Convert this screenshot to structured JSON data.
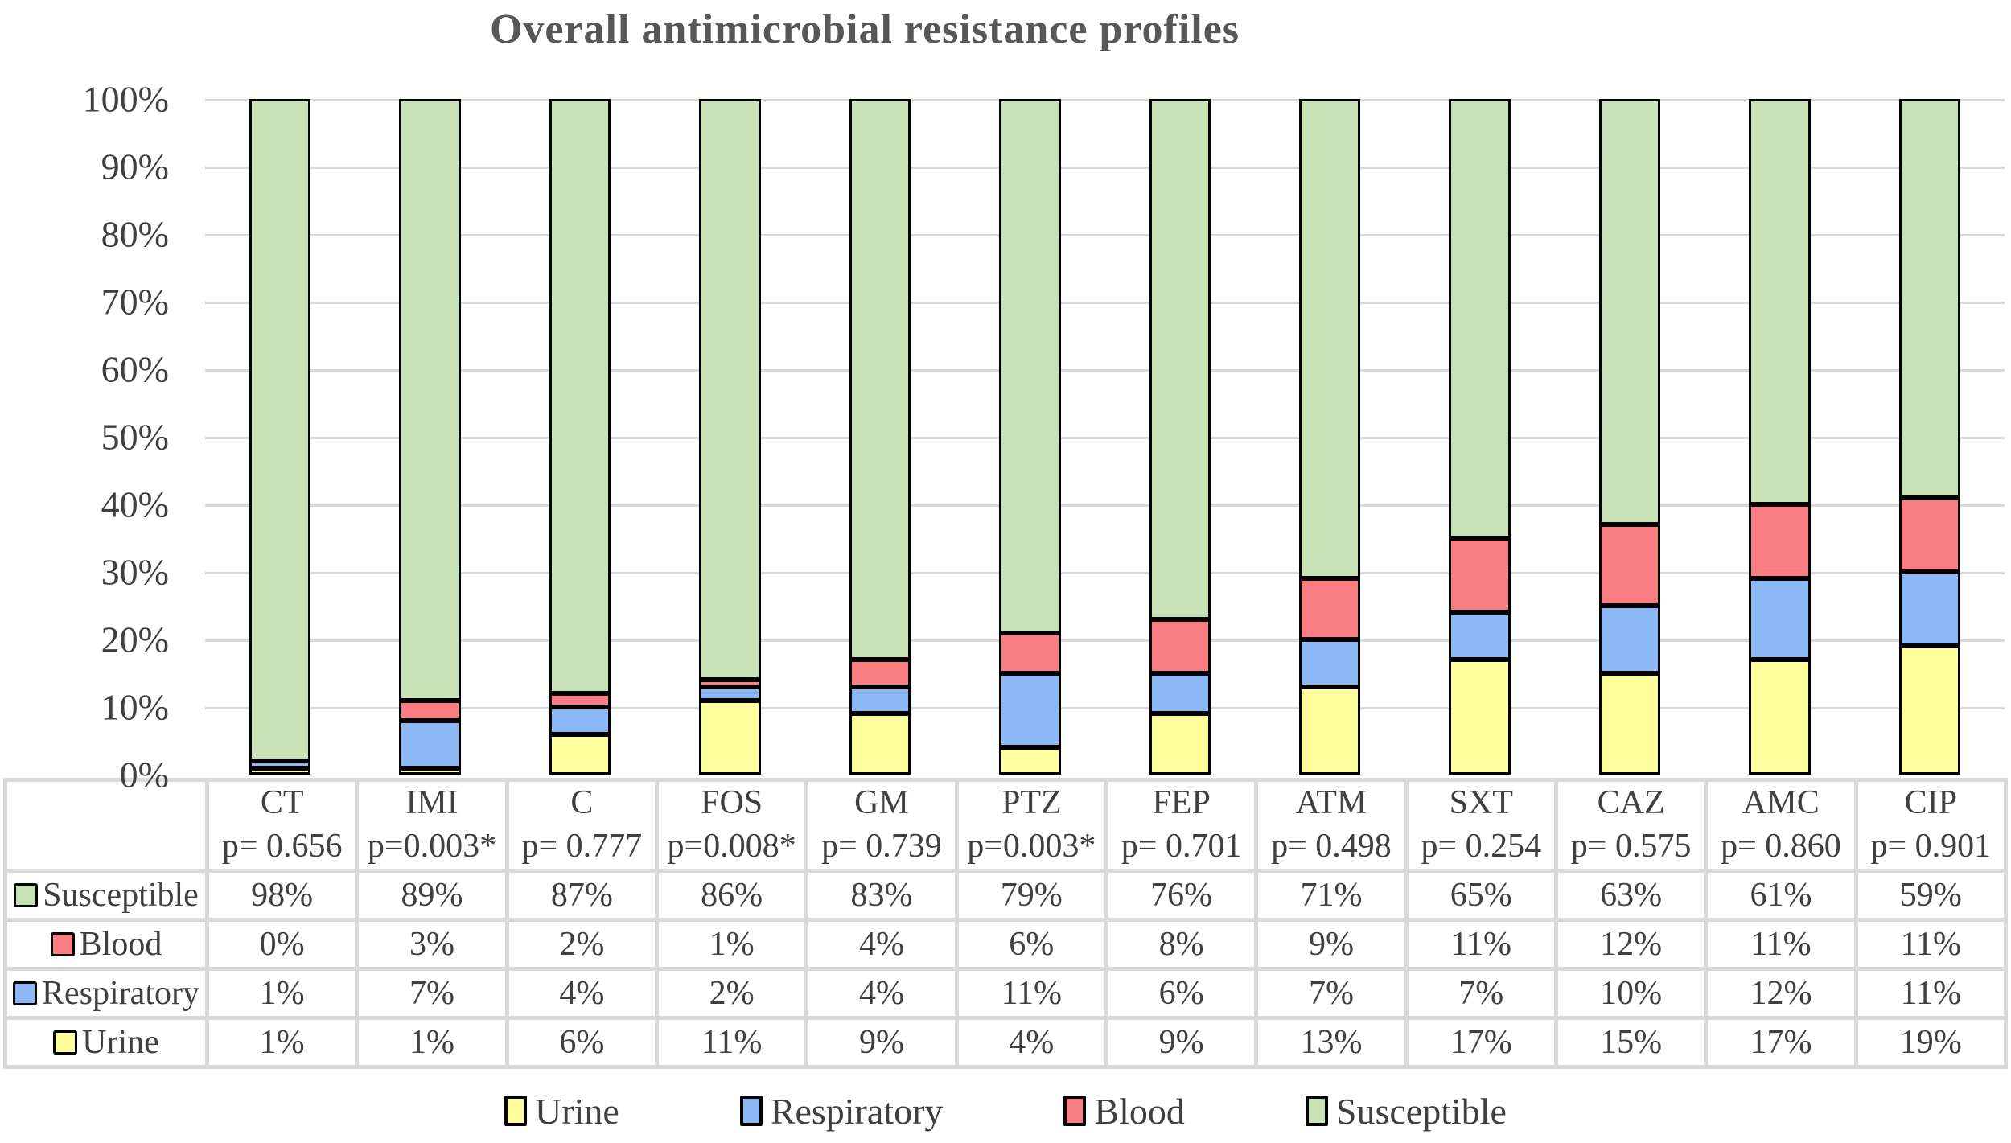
{
  "title": "Overall antimicrobial resistance profiles",
  "colors": {
    "urine": "#ffff9e",
    "respiratory": "#8cb9f5",
    "blood": "#fa7d81",
    "susceptible": "#c6e2b6",
    "grid": "#d9d9d9",
    "bar_border": "#000000",
    "table_border": "#d9d9d9",
    "text": "#404040",
    "title_text": "#575757"
  },
  "y_axis": {
    "ticks": [
      "100%",
      "90%",
      "80%",
      "70%",
      "60%",
      "50%",
      "40%",
      "30%",
      "20%",
      "10%",
      "0%"
    ],
    "min": 0,
    "max": 100,
    "step": 10
  },
  "chart_data": {
    "type": "bar",
    "stacked": true,
    "title": "Overall antimicrobial resistance profiles",
    "xlabel": "",
    "ylabel": "",
    "ylim": [
      0,
      100
    ],
    "value_suffix": "%",
    "grid": true,
    "categories": [
      "CT",
      "IMI",
      "C",
      "FOS",
      "GM",
      "PTZ",
      "FEP",
      "ATM",
      "SXT",
      "CAZ",
      "AMC",
      "CIP"
    ],
    "p_values": [
      "p= 0.656",
      "p=0.003*",
      "p= 0.777",
      "p=0.008*",
      "p= 0.739",
      "p=0.003*",
      "p= 0.701",
      "p= 0.498",
      "p= 0.254",
      "p= 0.575",
      "p= 0.860",
      "p= 0.901"
    ],
    "series": [
      {
        "name": "Susceptible",
        "color_key": "susceptible",
        "values": [
          98,
          89,
          87,
          86,
          83,
          79,
          76,
          71,
          65,
          63,
          61,
          59
        ]
      },
      {
        "name": "Blood",
        "color_key": "blood",
        "values": [
          0,
          3,
          2,
          1,
          4,
          6,
          8,
          9,
          11,
          12,
          11,
          11
        ]
      },
      {
        "name": "Respiratory",
        "color_key": "respiratory",
        "values": [
          1,
          7,
          4,
          2,
          4,
          11,
          6,
          7,
          7,
          10,
          12,
          11
        ]
      },
      {
        "name": "Urine",
        "color_key": "urine",
        "values": [
          1,
          1,
          6,
          11,
          9,
          4,
          9,
          13,
          17,
          15,
          17,
          19
        ]
      }
    ],
    "stack_order_bottom_to_top": [
      "Urine",
      "Respiratory",
      "Blood",
      "Susceptible"
    ],
    "legend_position": "bottom"
  },
  "legend": [
    {
      "label": "Urine",
      "color_key": "urine"
    },
    {
      "label": "Respiratory",
      "color_key": "respiratory"
    },
    {
      "label": "Blood",
      "color_key": "blood"
    },
    {
      "label": "Susceptible",
      "color_key": "susceptible"
    }
  ]
}
